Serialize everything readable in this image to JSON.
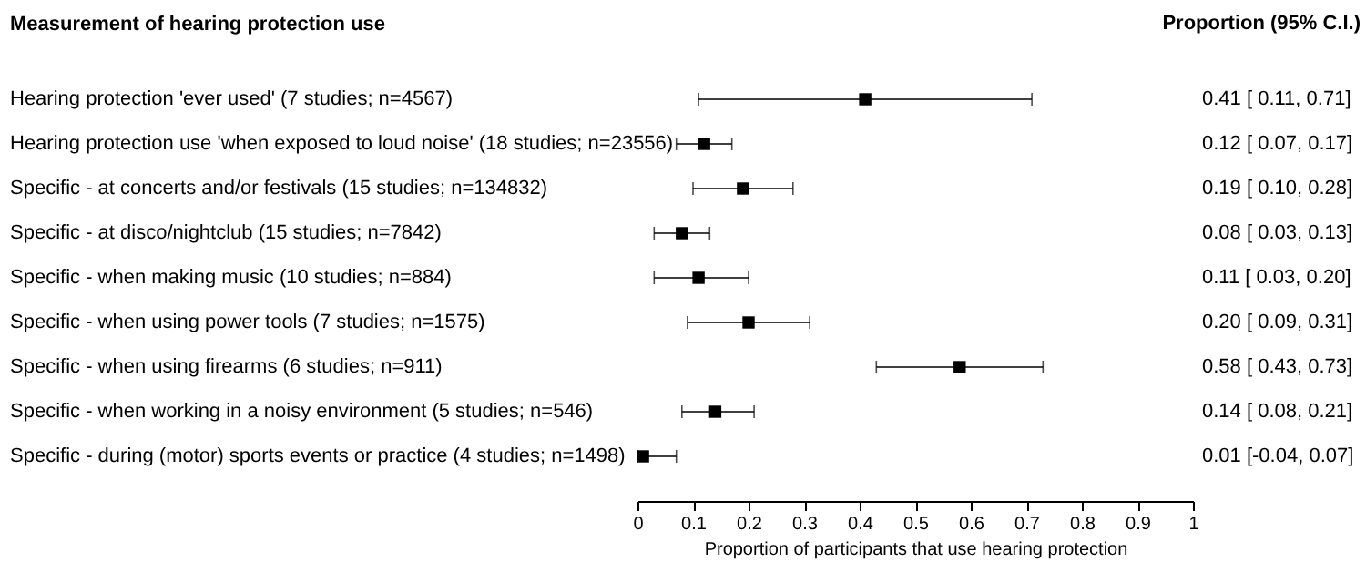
{
  "chart_data": {
    "type": "scatter",
    "orientation": "horizontal",
    "ylabel": "Measurement of hearing protection use",
    "xlabel": "Proportion of participants that use hearing protection",
    "annotations": [
      "Proportion (95% C.I.)"
    ],
    "categories": [
      "Hearing protection 'ever used' (7 studies; n=4567)",
      "Hearing protection use 'when exposed to loud noise' (18 studies; n=23556)",
      "Specific - at concerts and/or festivals (15 studies; n=134832)",
      "Specific - at disco/nightclub (15 studies; n=7842)",
      "Specific - when making music (10 studies; n=884)",
      "Specific - when using power tools (7 studies; n=1575)",
      "Specific - when using firearms (6 studies; n=911)",
      "Specific - when working in a noisy environment (5 studies; n=546)",
      "Specific - during (motor) sports events or practice (4 studies; n=1498)"
    ],
    "values": [
      0.41,
      0.12,
      0.19,
      0.08,
      0.11,
      0.2,
      0.58,
      0.14,
      0.01
    ],
    "errors": [
      [
        0.11,
        0.71
      ],
      [
        0.07,
        0.17
      ],
      [
        0.1,
        0.28
      ],
      [
        0.03,
        0.13
      ],
      [
        0.03,
        0.2
      ],
      [
        0.09,
        0.31
      ],
      [
        0.43,
        0.73
      ],
      [
        0.08,
        0.21
      ],
      [
        0.0,
        0.07
      ]
    ],
    "value_labels": [
      "0.41 [ 0.11, 0.71]",
      "0.12 [ 0.07, 0.17]",
      "0.19 [ 0.10, 0.28]",
      "0.08 [ 0.03, 0.13]",
      "0.11 [ 0.03, 0.20]",
      "0.20 [ 0.09, 0.31]",
      "0.58 [ 0.43, 0.73]",
      "0.14 [ 0.08, 0.21]",
      "0.01 [-0.04, 0.07]"
    ],
    "color": "#000000",
    "marker": "square",
    "grid": false,
    "xlim": [
      0,
      1
    ],
    "xticks": [
      0,
      0.1,
      0.2,
      0.3,
      0.4,
      0.5,
      0.6,
      0.7,
      0.8,
      0.9,
      1
    ]
  }
}
